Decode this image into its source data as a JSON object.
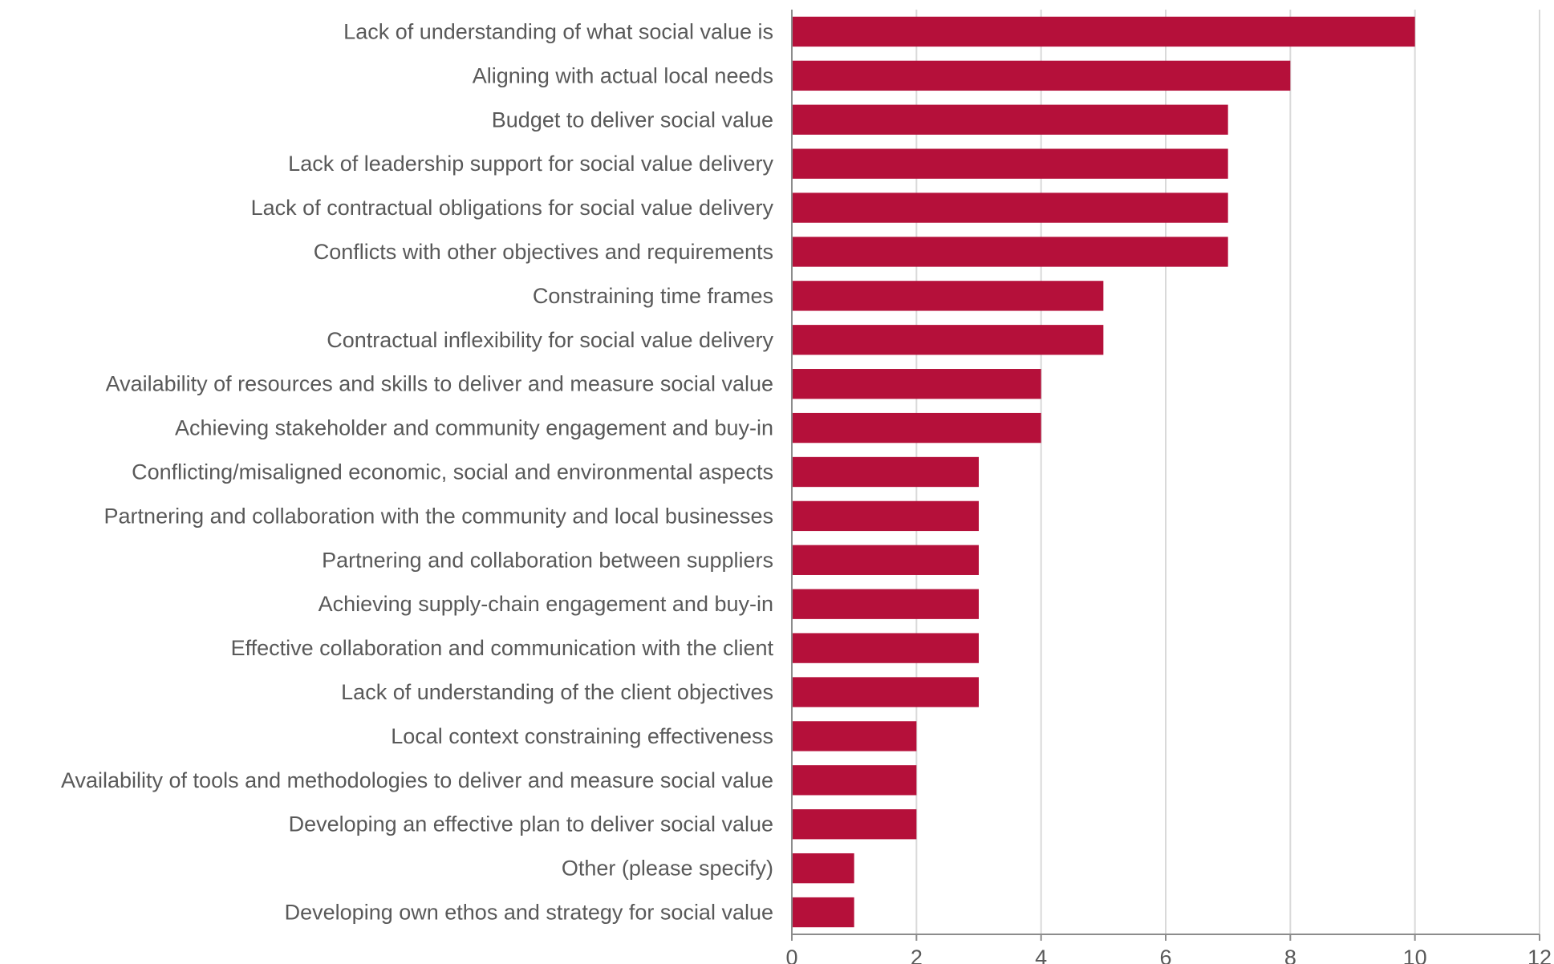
{
  "chart_data": {
    "type": "bar",
    "orientation": "horizontal",
    "categories": [
      "Lack of understanding of what social value is",
      "Aligning with actual local needs",
      "Budget to deliver social value",
      "Lack of leadership support for social value delivery",
      "Lack of contractual obligations for social value delivery",
      "Conflicts with other objectives and requirements",
      "Constraining time frames",
      "Contractual inflexibility for social value delivery",
      "Availability of resources and skills to deliver and measure social value",
      "Achieving stakeholder and community engagement and buy-in",
      "Conflicting/misaligned economic, social and environmental aspects",
      "Partnering and collaboration with the community and local businesses",
      "Partnering and collaboration between suppliers",
      "Achieving supply-chain engagement and buy-in",
      "Effective collaboration and communication with the client",
      "Lack of understanding of the client objectives",
      "Local context constraining effectiveness",
      "Availability of tools and methodologies to deliver and measure social value",
      "Developing an effective plan to deliver social value",
      "Other (please specify)",
      "Developing own ethos and strategy for social value"
    ],
    "values": [
      10,
      8,
      7,
      7,
      7,
      7,
      5,
      5,
      4,
      4,
      3,
      3,
      3,
      3,
      3,
      3,
      2,
      2,
      2,
      1,
      1
    ],
    "xlim": [
      0,
      12
    ],
    "xticks": [
      "0",
      "2",
      "4",
      "6",
      "8",
      "10",
      "12"
    ],
    "grid": "vertical",
    "bar_color": "#B5103A",
    "title": "",
    "xlabel": "",
    "ylabel": ""
  }
}
